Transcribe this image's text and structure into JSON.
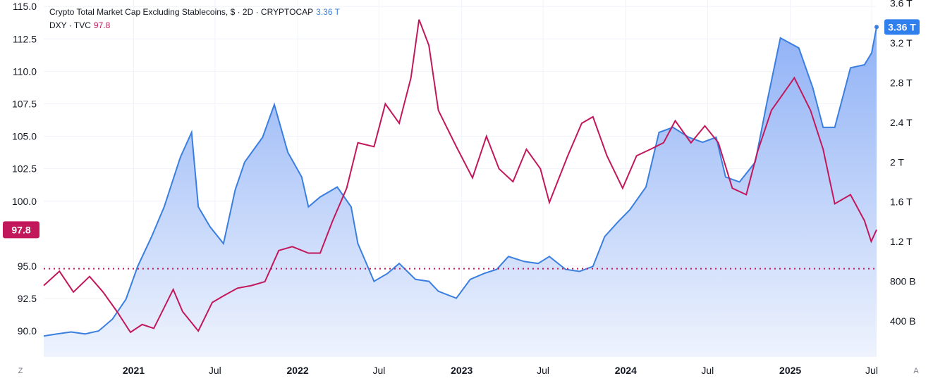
{
  "legend": {
    "crypto": {
      "label": "Crypto Total Market Cap Excluding Stablecoins, $ · 2D · CRYPTOCAP",
      "value": "3.36 T"
    },
    "dxy": {
      "label": "DXY · TVC",
      "value": "97.8"
    }
  },
  "buttons": {
    "left": "Z",
    "right": "A"
  },
  "colors": {
    "crypto": "#3a7fe0",
    "crypto_fill_top": "#8fb1f6",
    "crypto_fill_bottom": "#eef3fd",
    "dxy": "#c2185b",
    "dotted": "#c2185b",
    "grid": "#f0f3fa",
    "badge_crypto": "#2f7fec",
    "badge_dxy": "#c2185b"
  },
  "chart_data": {
    "type": "line",
    "x_ticks": [
      {
        "label": "2021",
        "date": "2021-01-01",
        "bold": true
      },
      {
        "label": "Jul",
        "date": "2021-07-01",
        "bold": false
      },
      {
        "label": "2022",
        "date": "2022-01-01",
        "bold": true
      },
      {
        "label": "Jul",
        "date": "2022-07-01",
        "bold": false
      },
      {
        "label": "2023",
        "date": "2023-01-01",
        "bold": true
      },
      {
        "label": "Jul",
        "date": "2023-07-01",
        "bold": false
      },
      {
        "label": "2024",
        "date": "2024-01-01",
        "bold": true
      },
      {
        "label": "Jul",
        "date": "2024-07-01",
        "bold": false
      },
      {
        "label": "2025",
        "date": "2025-01-01",
        "bold": true
      },
      {
        "label": "Jul",
        "date": "2025-07-01",
        "bold": false
      }
    ],
    "x_range": [
      "2020-06-15",
      "2025-07-12"
    ],
    "left_axis": {
      "series": "DXY",
      "ticks": [
        "115.0",
        "112.5",
        "110.0",
        "107.5",
        "105.0",
        "102.5",
        "100.0",
        "95.0",
        "92.5",
        "90.0"
      ],
      "ylim": [
        88.0,
        115.5
      ],
      "current_label": "97.8"
    },
    "right_axis": {
      "series": "Crypto Total Market Cap Excluding Stablecoins",
      "ticks": [
        "3.6 T",
        "3.2 T",
        "2.8 T",
        "2.4 T",
        "2 T",
        "1.6 T",
        "1.2 T",
        "800 B",
        "400 B"
      ],
      "tick_values": [
        3.6,
        3.2,
        2.8,
        2.4,
        2.0,
        1.6,
        1.2,
        0.8,
        0.4
      ],
      "unit": "T",
      "current_label": "3.36 T"
    },
    "reference_line": {
      "value": 94.8,
      "axis": "left",
      "style": "dotted"
    },
    "series": [
      {
        "name": "Crypto Total Market Cap Excluding Stablecoins",
        "axis": "right",
        "points": [
          [
            "2020-06-15",
            0.25
          ],
          [
            "2020-07-15",
            0.27
          ],
          [
            "2020-08-15",
            0.29
          ],
          [
            "2020-09-15",
            0.27
          ],
          [
            "2020-10-15",
            0.3
          ],
          [
            "2020-11-15",
            0.42
          ],
          [
            "2020-12-15",
            0.62
          ],
          [
            "2021-01-10",
            0.95
          ],
          [
            "2021-02-10",
            1.25
          ],
          [
            "2021-03-10",
            1.55
          ],
          [
            "2021-04-15",
            2.05
          ],
          [
            "2021-05-10",
            2.3
          ],
          [
            "2021-05-25",
            1.55
          ],
          [
            "2021-06-20",
            1.35
          ],
          [
            "2021-07-20",
            1.18
          ],
          [
            "2021-08-15",
            1.72
          ],
          [
            "2021-09-05",
            2.0
          ],
          [
            "2021-10-15",
            2.25
          ],
          [
            "2021-11-10",
            2.58
          ],
          [
            "2021-12-10",
            2.1
          ],
          [
            "2022-01-10",
            1.85
          ],
          [
            "2022-01-25",
            1.55
          ],
          [
            "2022-02-20",
            1.65
          ],
          [
            "2022-03-30",
            1.75
          ],
          [
            "2022-04-30",
            1.55
          ],
          [
            "2022-05-15",
            1.18
          ],
          [
            "2022-06-20",
            0.8
          ],
          [
            "2022-07-20",
            0.88
          ],
          [
            "2022-08-15",
            0.98
          ],
          [
            "2022-09-20",
            0.82
          ],
          [
            "2022-10-20",
            0.8
          ],
          [
            "2022-11-10",
            0.7
          ],
          [
            "2022-12-20",
            0.63
          ],
          [
            "2023-01-20",
            0.82
          ],
          [
            "2023-02-20",
            0.88
          ],
          [
            "2023-03-20",
            0.92
          ],
          [
            "2023-04-15",
            1.05
          ],
          [
            "2023-05-20",
            1.0
          ],
          [
            "2023-06-20",
            0.98
          ],
          [
            "2023-07-15",
            1.05
          ],
          [
            "2023-08-20",
            0.92
          ],
          [
            "2023-09-20",
            0.9
          ],
          [
            "2023-10-20",
            0.95
          ],
          [
            "2023-11-15",
            1.25
          ],
          [
            "2023-12-15",
            1.4
          ],
          [
            "2024-01-10",
            1.52
          ],
          [
            "2024-02-15",
            1.75
          ],
          [
            "2024-03-15",
            2.3
          ],
          [
            "2024-04-15",
            2.35
          ],
          [
            "2024-05-20",
            2.25
          ],
          [
            "2024-06-20",
            2.2
          ],
          [
            "2024-07-20",
            2.25
          ],
          [
            "2024-08-10",
            1.85
          ],
          [
            "2024-09-10",
            1.8
          ],
          [
            "2024-10-15",
            2.0
          ],
          [
            "2024-11-10",
            2.6
          ],
          [
            "2024-12-10",
            3.25
          ],
          [
            "2025-01-20",
            3.15
          ],
          [
            "2025-02-20",
            2.75
          ],
          [
            "2025-03-15",
            2.35
          ],
          [
            "2025-04-10",
            2.35
          ],
          [
            "2025-05-15",
            2.95
          ],
          [
            "2025-06-15",
            2.98
          ],
          [
            "2025-07-01",
            3.1
          ],
          [
            "2025-07-12",
            3.36
          ]
        ]
      },
      {
        "name": "DXY",
        "axis": "left",
        "points": [
          [
            "2020-06-15",
            93.5
          ],
          [
            "2020-07-20",
            94.6
          ],
          [
            "2020-08-20",
            93.0
          ],
          [
            "2020-09-25",
            94.2
          ],
          [
            "2020-10-25",
            93.0
          ],
          [
            "2020-11-25",
            91.5
          ],
          [
            "2020-12-25",
            89.9
          ],
          [
            "2021-01-20",
            90.5
          ],
          [
            "2021-02-15",
            90.2
          ],
          [
            "2021-03-30",
            93.2
          ],
          [
            "2021-04-20",
            91.5
          ],
          [
            "2021-05-25",
            90.0
          ],
          [
            "2021-06-25",
            92.2
          ],
          [
            "2021-07-20",
            92.7
          ],
          [
            "2021-08-20",
            93.3
          ],
          [
            "2021-09-20",
            93.5
          ],
          [
            "2021-10-20",
            93.8
          ],
          [
            "2021-11-20",
            96.2
          ],
          [
            "2021-12-20",
            96.5
          ],
          [
            "2022-01-25",
            96.0
          ],
          [
            "2022-02-20",
            96.0
          ],
          [
            "2022-03-20",
            98.5
          ],
          [
            "2022-04-20",
            101.0
          ],
          [
            "2022-05-15",
            104.5
          ],
          [
            "2022-06-20",
            104.2
          ],
          [
            "2022-07-15",
            107.5
          ],
          [
            "2022-08-15",
            106.0
          ],
          [
            "2022-09-10",
            109.5
          ],
          [
            "2022-09-28",
            114.0
          ],
          [
            "2022-10-20",
            112.0
          ],
          [
            "2022-11-10",
            107.0
          ],
          [
            "2022-12-20",
            104.2
          ],
          [
            "2023-01-25",
            101.8
          ],
          [
            "2023-02-25",
            105.0
          ],
          [
            "2023-03-25",
            102.5
          ],
          [
            "2023-04-25",
            101.5
          ],
          [
            "2023-05-25",
            104.0
          ],
          [
            "2023-06-25",
            102.5
          ],
          [
            "2023-07-15",
            99.9
          ],
          [
            "2023-08-25",
            103.5
          ],
          [
            "2023-09-25",
            106.0
          ],
          [
            "2023-10-20",
            106.5
          ],
          [
            "2023-11-20",
            103.5
          ],
          [
            "2023-12-25",
            101.0
          ],
          [
            "2024-01-25",
            103.5
          ],
          [
            "2024-02-25",
            104.0
          ],
          [
            "2024-03-25",
            104.5
          ],
          [
            "2024-04-20",
            106.2
          ],
          [
            "2024-05-25",
            104.5
          ],
          [
            "2024-06-25",
            105.8
          ],
          [
            "2024-07-25",
            104.5
          ],
          [
            "2024-08-25",
            101.0
          ],
          [
            "2024-09-25",
            100.5
          ],
          [
            "2024-10-20",
            103.8
          ],
          [
            "2024-11-20",
            107.0
          ],
          [
            "2025-01-10",
            109.5
          ],
          [
            "2025-02-15",
            107.0
          ],
          [
            "2025-03-15",
            104.0
          ],
          [
            "2025-04-10",
            99.8
          ],
          [
            "2025-05-15",
            100.5
          ],
          [
            "2025-06-15",
            98.5
          ],
          [
            "2025-06-30",
            96.9
          ],
          [
            "2025-07-12",
            97.8
          ]
        ]
      }
    ]
  }
}
